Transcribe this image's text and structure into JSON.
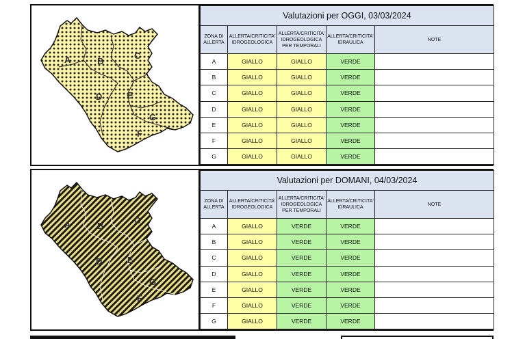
{
  "headers": {
    "zona": "ZONA DI ALLERTA",
    "idrogeologica": "ALLERTA/CRITICITA' IDROGEOLOGICA",
    "temporali": "ALLERTA/CRITICITA' IDROGEOLOGICA PER TEMPORALI",
    "idraulica": "ALLERTA/CRITICITA' IDRAULICA",
    "note": "NOTE"
  },
  "map_zone_labels": [
    "A",
    "B",
    "C",
    "D",
    "E",
    "F",
    "G"
  ],
  "colors": {
    "giallo": "#ffffa6",
    "verde": "#b7f5a5",
    "header": "#dbe3f0"
  },
  "today": {
    "title": "Valutazioni per OGGI, 03/03/2024",
    "rows": [
      {
        "zone": "A",
        "idrogeologica": "GIALLO",
        "temporali": "GIALLO",
        "idraulica": "VERDE",
        "note": ""
      },
      {
        "zone": "B",
        "idrogeologica": "GIALLO",
        "temporali": "GIALLO",
        "idraulica": "VERDE",
        "note": ""
      },
      {
        "zone": "C",
        "idrogeologica": "GIALLO",
        "temporali": "GIALLO",
        "idraulica": "VERDE",
        "note": ""
      },
      {
        "zone": "D",
        "idrogeologica": "GIALLO",
        "temporali": "GIALLO",
        "idraulica": "VERDE",
        "note": ""
      },
      {
        "zone": "E",
        "idrogeologica": "GIALLO",
        "temporali": "GIALLO",
        "idraulica": "VERDE",
        "note": ""
      },
      {
        "zone": "F",
        "idrogeologica": "GIALLO",
        "temporali": "GIALLO",
        "idraulica": "VERDE",
        "note": ""
      },
      {
        "zone": "G",
        "idrogeologica": "GIALLO",
        "temporali": "GIALLO",
        "idraulica": "VERDE",
        "note": ""
      }
    ]
  },
  "tomorrow": {
    "title": "Valutazioni per DOMANI, 04/03/2024",
    "rows": [
      {
        "zone": "A",
        "idrogeologica": "GIALLO",
        "temporali": "VERDE",
        "idraulica": "VERDE",
        "note": ""
      },
      {
        "zone": "B",
        "idrogeologica": "GIALLO",
        "temporali": "VERDE",
        "idraulica": "VERDE",
        "note": ""
      },
      {
        "zone": "C",
        "idrogeologica": "GIALLO",
        "temporali": "VERDE",
        "idraulica": "VERDE",
        "note": ""
      },
      {
        "zone": "D",
        "idrogeologica": "GIALLO",
        "temporali": "VERDE",
        "idraulica": "VERDE",
        "note": ""
      },
      {
        "zone": "E",
        "idrogeologica": "GIALLO",
        "temporali": "VERDE",
        "idraulica": "VERDE",
        "note": ""
      },
      {
        "zone": "F",
        "idrogeologica": "GIALLO",
        "temporali": "VERDE",
        "idraulica": "VERDE",
        "note": ""
      },
      {
        "zone": "G",
        "idrogeologica": "GIALLO",
        "temporali": "VERDE",
        "idraulica": "VERDE",
        "note": ""
      }
    ]
  }
}
